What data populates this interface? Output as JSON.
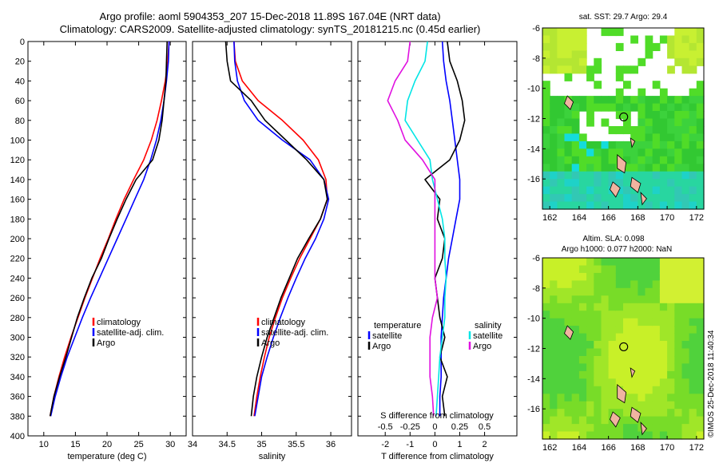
{
  "title_line1": "Argo profile: aoml 5904353_207 15-Dec-2018 11.89S 167.04E (NRT data)",
  "title_line2": "Climatology: CARS2009. Satellite-adjusted climatology: synTS_20181215.nc (0.45d earlier)",
  "sst_title": "sat. SST: 29.7 Argo: 29.4",
  "altim_line1": "Altim. SLA: 0.098",
  "altim_line2": "Argo h1000: 0.077 h2000: NaN",
  "side_label": "©IMOS 25-Dec-2018 11:40:34",
  "colors": {
    "climatology": "#ff0000",
    "satellite": "#0000ff",
    "argo": "#000000",
    "sat_salinity": "#00e5e5",
    "argo_salinity": "#e010e0"
  },
  "chart_data": [
    {
      "type": "line",
      "name": "temperature",
      "xlabel": "temperature (deg C)",
      "ylabel": "",
      "xlim": [
        7.5,
        32.5
      ],
      "ylim": [
        400,
        0
      ],
      "x_ticks": [
        "10",
        "15",
        "20",
        "25",
        "30"
      ],
      "x_tick_values": [
        10,
        15,
        20,
        25,
        30
      ],
      "y_ticks": [
        "0",
        "20",
        "40",
        "60",
        "80",
        "100",
        "120",
        "140",
        "160",
        "180",
        "200",
        "220",
        "240",
        "260",
        "280",
        "300",
        "320",
        "340",
        "360",
        "380",
        "400"
      ],
      "y_tick_values": [
        0,
        20,
        40,
        60,
        80,
        100,
        120,
        140,
        160,
        180,
        200,
        220,
        240,
        260,
        280,
        300,
        320,
        340,
        360,
        380,
        400
      ],
      "legend": [
        "climatology",
        "satellite-adj. clim.",
        "Argo"
      ],
      "series": [
        {
          "name": "climatology",
          "color": "#ff0000",
          "x": [
            29.8,
            29.6,
            29.2,
            28.6,
            27.9,
            27.0,
            25.8,
            24.2,
            22.7,
            21.4,
            20.2,
            18.9,
            17.7,
            16.5,
            15.4,
            14.3,
            13.3,
            12.4,
            11.6,
            11.0
          ],
          "y": [
            0,
            20,
            40,
            60,
            80,
            100,
            120,
            140,
            160,
            180,
            200,
            220,
            240,
            260,
            280,
            300,
            320,
            340,
            360,
            380
          ]
        },
        {
          "name": "satellite-adj. clim.",
          "color": "#0000ff",
          "x": [
            29.8,
            29.7,
            29.4,
            29.0,
            28.5,
            27.8,
            26.9,
            25.8,
            24.4,
            23.0,
            21.6,
            20.2,
            18.8,
            17.4,
            16.1,
            14.9,
            13.7,
            12.7,
            11.8,
            11.1
          ],
          "y": [
            0,
            20,
            40,
            60,
            80,
            100,
            120,
            140,
            160,
            180,
            200,
            220,
            240,
            260,
            280,
            300,
            320,
            340,
            360,
            380
          ]
        },
        {
          "name": "Argo",
          "color": "#000000",
          "x": [
            29.5,
            29.4,
            29.3,
            29.0,
            28.7,
            28.2,
            27.2,
            24.6,
            23.0,
            21.6,
            20.3,
            19.1,
            17.6,
            16.4,
            15.3,
            14.4,
            13.5,
            12.5,
            11.6,
            11.0
          ],
          "y": [
            0,
            20,
            40,
            60,
            80,
            100,
            120,
            140,
            160,
            180,
            200,
            220,
            240,
            260,
            280,
            300,
            320,
            340,
            360,
            380
          ]
        }
      ]
    },
    {
      "type": "line",
      "name": "salinity",
      "xlabel": "salinity",
      "xlim": [
        34.0,
        36.3
      ],
      "ylim": [
        400,
        0
      ],
      "x_ticks": [
        "34",
        "34.5",
        "35",
        "35.5",
        "36"
      ],
      "x_tick_values": [
        34,
        34.5,
        35,
        35.5,
        36
      ],
      "legend": [
        "climatology",
        "satellite-adj. clim.",
        "Argo"
      ],
      "series": [
        {
          "name": "climatology",
          "color": "#ff0000",
          "x": [
            34.6,
            34.62,
            34.72,
            34.95,
            35.3,
            35.6,
            35.82,
            35.93,
            35.95,
            35.85,
            35.7,
            35.55,
            35.42,
            35.3,
            35.2,
            35.11,
            35.04,
            34.98,
            34.93,
            34.89
          ],
          "y": [
            0,
            20,
            40,
            60,
            80,
            100,
            120,
            140,
            160,
            180,
            200,
            220,
            240,
            260,
            280,
            300,
            320,
            340,
            360,
            380
          ]
        },
        {
          "name": "satellite-adj. clim.",
          "color": "#0000ff",
          "x": [
            34.6,
            34.61,
            34.65,
            34.75,
            34.95,
            35.3,
            35.7,
            35.9,
            35.97,
            35.9,
            35.78,
            35.63,
            35.5,
            35.38,
            35.27,
            35.17,
            35.08,
            35.0,
            34.95,
            34.9
          ],
          "y": [
            0,
            20,
            40,
            60,
            80,
            100,
            120,
            140,
            160,
            180,
            200,
            220,
            240,
            260,
            280,
            300,
            320,
            340,
            360,
            380
          ]
        },
        {
          "name": "Argo",
          "color": "#000000",
          "x": [
            34.48,
            34.5,
            34.55,
            34.85,
            35.05,
            35.35,
            35.65,
            35.9,
            35.95,
            35.85,
            35.68,
            35.52,
            35.4,
            35.28,
            35.18,
            35.08,
            35.0,
            34.93,
            34.88,
            34.85
          ],
          "y": [
            0,
            20,
            40,
            60,
            80,
            100,
            120,
            140,
            160,
            180,
            200,
            220,
            240,
            260,
            280,
            300,
            320,
            340,
            360,
            380
          ]
        }
      ]
    },
    {
      "type": "line",
      "name": "difference",
      "xlabel": "T difference from climatology",
      "xlabel_top": "S difference from climatology",
      "xlim": [
        -3.1,
        3.3
      ],
      "ylim": [
        400,
        0
      ],
      "x_ticks": [
        "-2",
        "-1",
        "0",
        "1",
        "2"
      ],
      "x_tick_values": [
        -2,
        -1,
        0,
        1,
        2
      ],
      "top_ticks": [
        "-0.5",
        "-0.25",
        "0",
        "0.25",
        "0.5"
      ],
      "top_tick_values": [
        -2,
        -1,
        0,
        1,
        2
      ],
      "legend_left": [
        "temperature",
        "satellite",
        "Argo"
      ],
      "legend_right": [
        "salinity",
        "satellite",
        "Argo"
      ],
      "series": [
        {
          "name": "temperature satellite",
          "color": "#0000ff",
          "x": [
            0.3,
            0.35,
            0.45,
            0.6,
            0.7,
            0.8,
            0.9,
            1.0,
            1.0,
            0.85,
            0.7,
            0.55,
            0.45,
            0.35,
            0.3,
            0.25,
            0.25,
            0.25,
            0.2,
            0.2
          ],
          "y": [
            0,
            20,
            40,
            60,
            80,
            100,
            120,
            140,
            160,
            180,
            200,
            220,
            240,
            260,
            280,
            300,
            320,
            340,
            360,
            380
          ]
        },
        {
          "name": "temperature Argo",
          "color": "#000000",
          "x": [
            0.5,
            0.6,
            0.9,
            1.1,
            1.2,
            1.0,
            0.6,
            -0.4,
            0.2,
            0.1,
            0.4,
            0.3,
            0.0,
            0.1,
            0.2,
            0.4,
            0.2,
            0.5,
            0.3,
            0.4
          ],
          "y": [
            0,
            20,
            40,
            60,
            80,
            100,
            120,
            140,
            160,
            180,
            200,
            220,
            240,
            260,
            280,
            300,
            320,
            340,
            360,
            380
          ]
        },
        {
          "name": "salinity satellite",
          "color": "#00e5e5",
          "x": [
            -0.3,
            -0.4,
            -0.8,
            -1.1,
            -1.2,
            -0.7,
            -0.2,
            -0.1,
            0.1,
            0.3,
            0.4,
            0.4,
            0.45,
            0.4,
            0.4,
            0.3,
            0.2,
            0.15,
            0.1,
            0.05
          ],
          "y": [
            0,
            20,
            40,
            60,
            80,
            100,
            120,
            140,
            160,
            180,
            200,
            220,
            240,
            260,
            280,
            300,
            320,
            340,
            360,
            380
          ]
        },
        {
          "name": "salinity Argo",
          "color": "#e010e0",
          "x": [
            -1.0,
            -1.1,
            -1.6,
            -1.9,
            -1.5,
            -1.2,
            -0.5,
            0.0,
            0.0,
            0.0,
            0.0,
            0.0,
            0.0,
            0.1,
            -0.1,
            -0.2,
            -0.2,
            -0.2,
            -0.1,
            -0.05
          ],
          "y": [
            0,
            20,
            40,
            60,
            80,
            100,
            120,
            140,
            160,
            180,
            200,
            220,
            240,
            260,
            280,
            300,
            320,
            340,
            360,
            380
          ]
        }
      ]
    },
    {
      "type": "heatmap",
      "name": "sst-map",
      "xlim": [
        161.5,
        172.5
      ],
      "ylim": [
        -18,
        -6
      ],
      "x_ticks": [
        "162",
        "164",
        "166",
        "168",
        "170",
        "172"
      ],
      "x_tick_values": [
        162,
        164,
        166,
        168,
        170,
        172
      ],
      "y_ticks": [
        "-6",
        "-8",
        "-10",
        "-12",
        "-14",
        "-16"
      ],
      "y_tick_values": [
        -6,
        -8,
        -10,
        -12,
        -14,
        -16
      ],
      "marker": {
        "lon": 167.04,
        "lat": -11.89
      }
    },
    {
      "type": "heatmap",
      "name": "altim-map",
      "xlim": [
        161.5,
        172.5
      ],
      "ylim": [
        -18,
        -6
      ],
      "x_ticks": [
        "162",
        "164",
        "166",
        "168",
        "170",
        "172"
      ],
      "x_tick_values": [
        162,
        164,
        166,
        168,
        170,
        172
      ],
      "y_ticks": [
        "-6",
        "-8",
        "-10",
        "-12",
        "-14",
        "-16"
      ],
      "y_tick_values": [
        -6,
        -8,
        -10,
        -12,
        -14,
        -16
      ],
      "marker": {
        "lon": 167.04,
        "lat": -11.89
      }
    }
  ]
}
